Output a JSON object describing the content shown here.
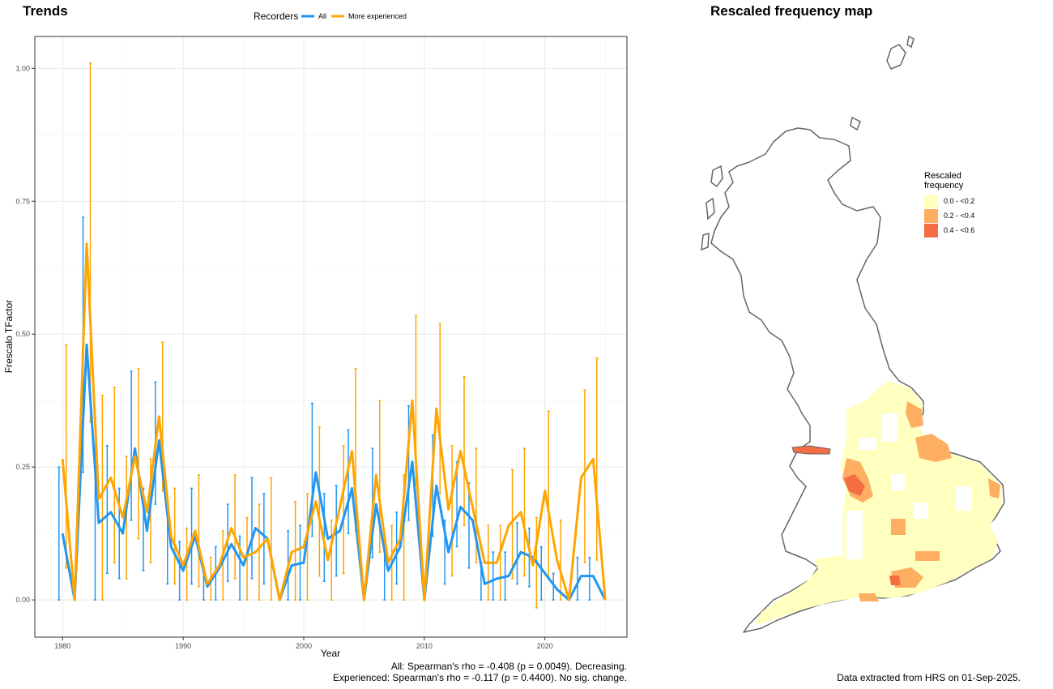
{
  "trends_title": "Trends",
  "map_title": "Rescaled frequency map",
  "legend": {
    "title": "Recorders",
    "items": [
      {
        "label": "All",
        "color": "#2196f3"
      },
      {
        "label": "More experienced",
        "color": "#ffa500"
      }
    ]
  },
  "stats": {
    "all": "All: Spearman's rho = -0.408 (p = 0.0049). Decreasing.",
    "experienced": "Experienced: Spearman's rho = -0.117 (p = 0.4400). No sig. change."
  },
  "footer": "Data extracted from HRS on 01-Sep-2025.",
  "map_legend": {
    "title_line1": "Rescaled",
    "title_line2": "frequency",
    "items": [
      {
        "label": "0.0 - <0.2",
        "color": "#ffffbf"
      },
      {
        "label": "0.2 - <0.4",
        "color": "#fdae61"
      },
      {
        "label": "0.4 - <0.6",
        "color": "#f46d43"
      }
    ]
  },
  "chart_data": {
    "type": "line",
    "xlabel": "Year",
    "ylabel": "Frescalo TFactor",
    "xlim": [
      1977.7,
      1981.0
    ],
    "ylim": [
      -0.07,
      1.06
    ],
    "x_ticks": [
      1980,
      1990,
      2000,
      2010,
      2020
    ],
    "y_ticks": [
      0.0,
      0.25,
      0.5,
      0.75,
      1.0
    ],
    "y_tick_labels": [
      "0.00",
      "0.25",
      "0.50",
      "0.75",
      "1.00"
    ],
    "grid": true,
    "legend_position": "top",
    "series": [
      {
        "name": "All",
        "color": "#2196f3",
        "x": [
          1980,
          1981,
          1982,
          1983,
          1984,
          1985,
          1986,
          1987,
          1988,
          1989,
          1990,
          1991,
          1992,
          1993,
          1994,
          1995,
          1996,
          1997,
          1998,
          1999,
          2000,
          2001,
          2002,
          2003,
          2004,
          2005,
          2006,
          2007,
          2008,
          2009,
          2010,
          2011,
          2012,
          2013,
          2014,
          2015,
          2016,
          2017,
          2018,
          2019,
          2020,
          2021,
          2022,
          2023,
          2024,
          2025
        ],
        "y": [
          0.125,
          0.0,
          0.48,
          0.145,
          0.165,
          0.125,
          0.285,
          0.13,
          0.3,
          0.1,
          0.055,
          0.12,
          0.025,
          0.06,
          0.105,
          0.065,
          0.135,
          0.115,
          0.0,
          0.065,
          0.07,
          0.24,
          0.115,
          0.13,
          0.21,
          0.0,
          0.18,
          0.055,
          0.1,
          0.26,
          0.0,
          0.215,
          0.09,
          0.175,
          0.15,
          0.03,
          0.04,
          0.045,
          0.09,
          0.08,
          0.05,
          0.02,
          0.0,
          0.045,
          0.045,
          0.0
        ],
        "lower": [
          0.0,
          0.0,
          0.24,
          0.0,
          0.05,
          0.04,
          0.15,
          0.055,
          0.18,
          0.03,
          0.0,
          0.03,
          0.0,
          0.0,
          0.035,
          0.0,
          0.04,
          0.03,
          0.0,
          0.0,
          0.0,
          0.12,
          0.035,
          0.045,
          0.125,
          0.0,
          0.08,
          0.0,
          0.03,
          0.15,
          0.0,
          0.12,
          0.03,
          0.1,
          0.06,
          0.0,
          0.0,
          0.0,
          0.03,
          0.025,
          0.0,
          0.0,
          0.0,
          0.0,
          0.0,
          0.0
        ],
        "upper": [
          0.25,
          0.0,
          0.72,
          0.29,
          0.29,
          0.21,
          0.43,
          0.21,
          0.41,
          0.17,
          0.11,
          0.21,
          0.06,
          0.1,
          0.18,
          0.12,
          0.23,
          0.2,
          0.0,
          0.13,
          0.14,
          0.37,
          0.2,
          0.215,
          0.32,
          0.0,
          0.285,
          0.12,
          0.165,
          0.365,
          0.0,
          0.31,
          0.15,
          0.26,
          0.22,
          0.07,
          0.09,
          0.09,
          0.145,
          0.135,
          0.1,
          0.05,
          0.0,
          0.08,
          0.08,
          0.0
        ]
      },
      {
        "name": "More experienced",
        "color": "#ffa500",
        "x": [
          1980,
          1981,
          1982,
          1983,
          1984,
          1985,
          1986,
          1987,
          1988,
          1989,
          1990,
          1991,
          1992,
          1993,
          1994,
          1995,
          1996,
          1997,
          1998,
          1999,
          2000,
          2001,
          2002,
          2003,
          2004,
          2005,
          2006,
          2007,
          2008,
          2009,
          2010,
          2011,
          2012,
          2013,
          2014,
          2015,
          2016,
          2017,
          2018,
          2019,
          2020,
          2021,
          2022,
          2023,
          2024,
          2025
        ],
        "y": [
          0.265,
          0.0,
          0.67,
          0.19,
          0.23,
          0.155,
          0.27,
          0.165,
          0.345,
          0.12,
          0.065,
          0.13,
          0.03,
          0.065,
          0.135,
          0.08,
          0.09,
          0.115,
          0.0,
          0.09,
          0.1,
          0.185,
          0.075,
          0.175,
          0.28,
          0.0,
          0.235,
          0.07,
          0.115,
          0.375,
          0.0,
          0.36,
          0.17,
          0.28,
          0.175,
          0.07,
          0.07,
          0.14,
          0.165,
          0.065,
          0.205,
          0.075,
          0.0,
          0.23,
          0.265,
          0.0
        ],
        "lower": [
          0.06,
          0.0,
          0.335,
          0.0,
          0.07,
          0.04,
          0.115,
          0.07,
          0.205,
          0.03,
          0.0,
          0.025,
          0.0,
          0.0,
          0.04,
          0.0,
          0.0,
          0.0,
          0.0,
          0.0,
          0.0,
          0.045,
          0.0,
          0.05,
          0.13,
          0.0,
          0.09,
          0.0,
          0.0,
          0.215,
          0.0,
          0.2,
          0.045,
          0.14,
          0.07,
          0.0,
          0.0,
          0.04,
          0.045,
          -0.015,
          0.04,
          0.0,
          0.0,
          0.07,
          0.075,
          0.0
        ],
        "upper": [
          0.48,
          0.0,
          1.01,
          0.385,
          0.4,
          0.27,
          0.435,
          0.265,
          0.485,
          0.21,
          0.135,
          0.235,
          0.08,
          0.13,
          0.235,
          0.155,
          0.18,
          0.23,
          0.0,
          0.185,
          0.2,
          0.325,
          0.15,
          0.29,
          0.435,
          0.0,
          0.375,
          0.14,
          0.235,
          0.535,
          0.0,
          0.52,
          0.29,
          0.42,
          0.285,
          0.14,
          0.14,
          0.245,
          0.285,
          0.155,
          0.355,
          0.15,
          0.0,
          0.395,
          0.455,
          0.0
        ]
      }
    ]
  }
}
